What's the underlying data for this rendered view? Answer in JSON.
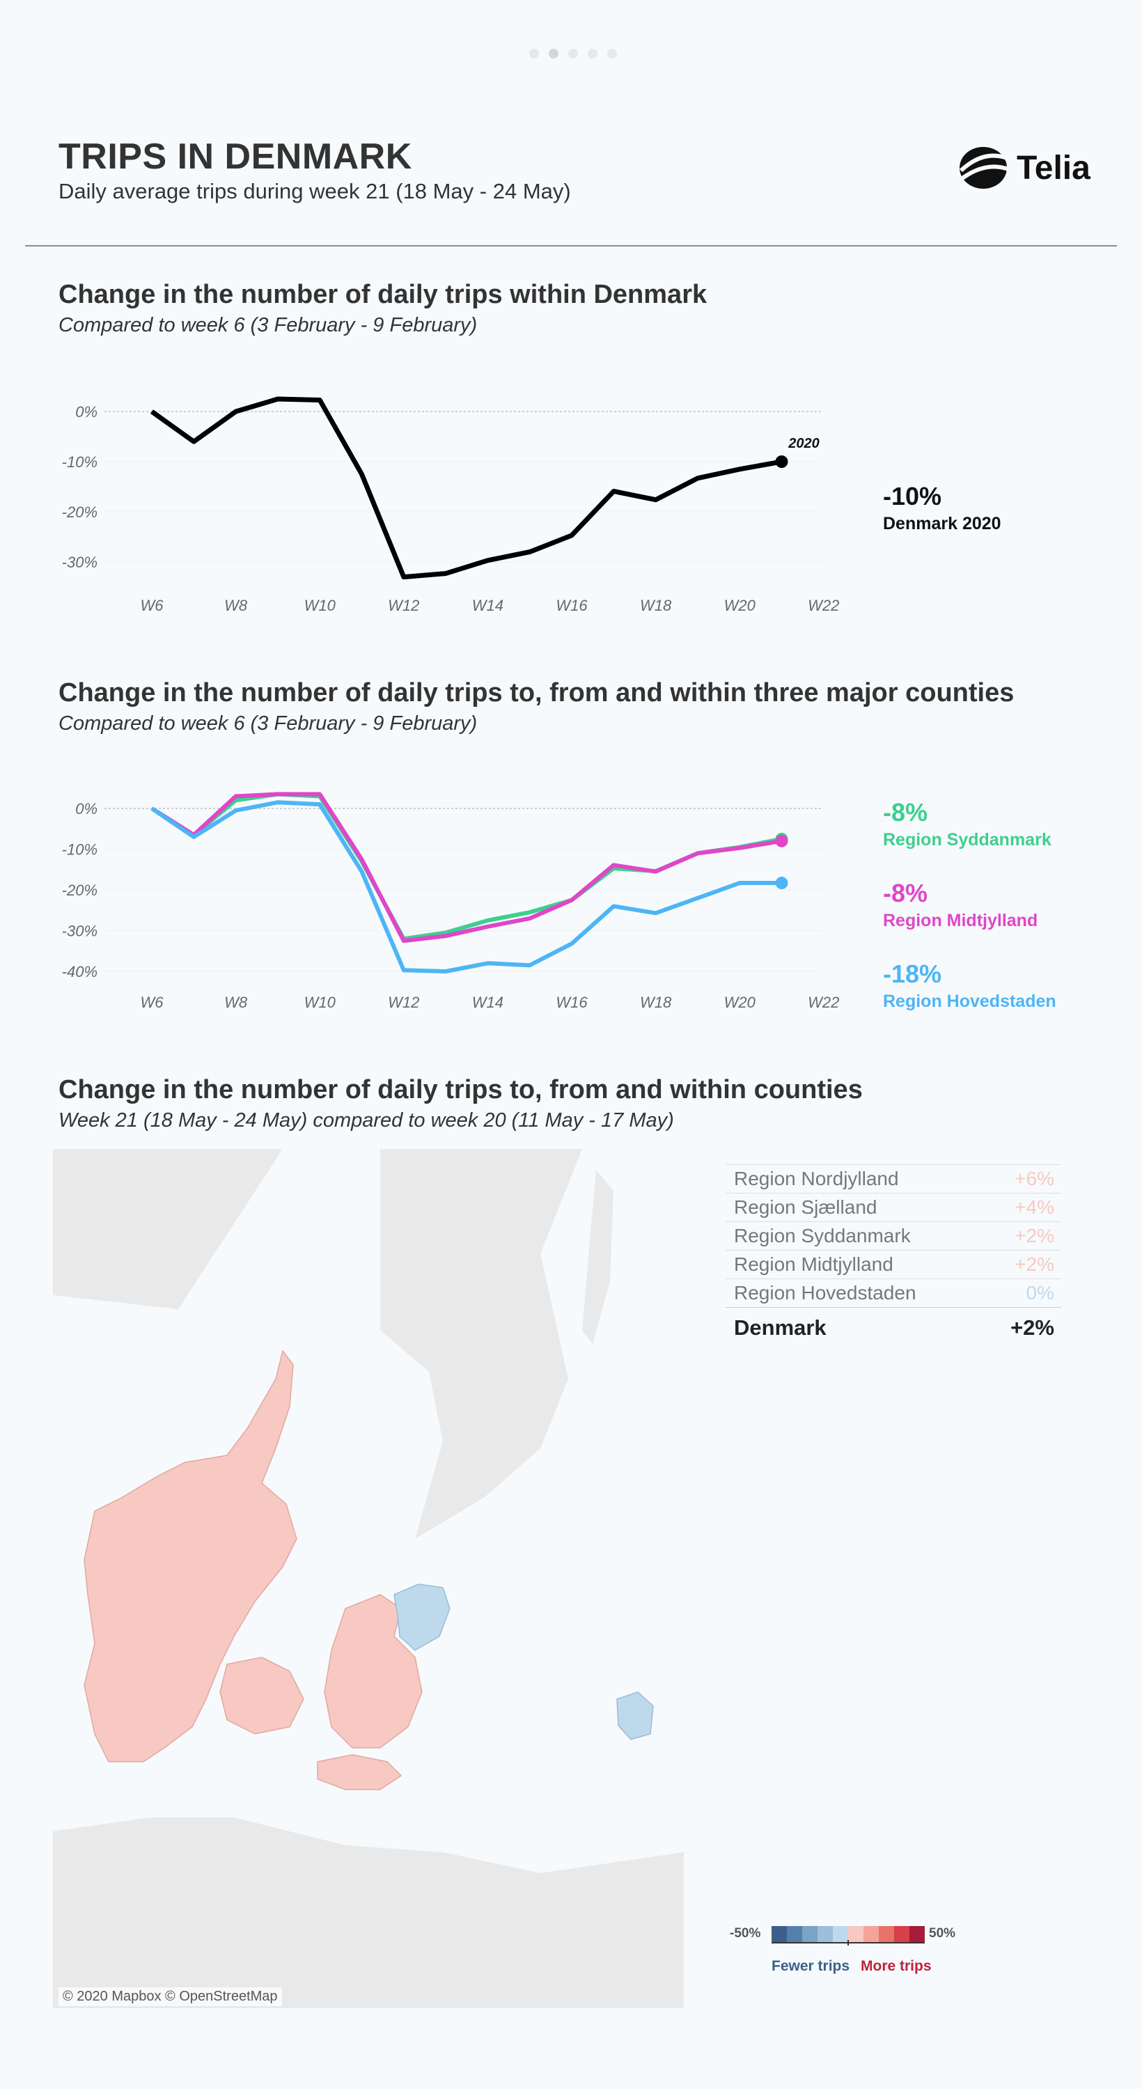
{
  "header": {
    "title": "TRIPS IN DENMARK",
    "subtitle": "Daily average trips during week 21 (18 May - 24 May)",
    "brand": "Telia",
    "page_dots": 5,
    "active_dot": 1
  },
  "colors": {
    "denmark": "#000000",
    "syddanmark": "#3ecf8e",
    "midtjylland": "#e046c8",
    "hovedstaden": "#4db5f5",
    "increase_fill": "#f7c9c2",
    "decrease_fill": "#bfd9ec"
  },
  "section1": {
    "title": "Change in the number of daily trips within Denmark",
    "subtitle": "Compared to week 6 (3 February - 9 February)",
    "callout_value": "-10%",
    "callout_label": "Denmark 2020",
    "end_label": "2020"
  },
  "section2": {
    "title": "Change in the number of daily trips to, from and within three major counties",
    "subtitle": "Compared to week 6 (3 February - 9 February)",
    "callouts": [
      {
        "value": "-8%",
        "label": "Region Syddanmark"
      },
      {
        "value": "-8%",
        "label": "Region Midtjylland"
      },
      {
        "value": "-18%",
        "label": "Region Hovedstaden"
      }
    ]
  },
  "section3": {
    "title": "Change in the number of daily trips to, from and within counties",
    "subtitle": "Week 21 (18 May - 24 May) compared to week 20 (11 May - 17 May)",
    "map_attribution": "© 2020 Mapbox © OpenStreetMap",
    "rows": [
      {
        "name": "Region Nordjylland",
        "value": "+6%"
      },
      {
        "name": "Region Sjælland",
        "value": "+4%"
      },
      {
        "name": "Region Syddanmark",
        "value": "+2%"
      },
      {
        "name": "Region Midtjylland",
        "value": "+2%"
      },
      {
        "name": "Region Hovedstaden",
        "value": "0%"
      }
    ],
    "total": {
      "name": "Denmark",
      "value": "+2%"
    },
    "legend": {
      "min": "-50%",
      "max": "50%",
      "fewer": "Fewer trips",
      "more": "More trips"
    }
  },
  "chart_data": [
    {
      "type": "line",
      "title": "Change in the number of daily trips within Denmark",
      "subtitle": "Compared to week 6 (3 February - 9 February)",
      "x": [
        6,
        7,
        8,
        9,
        10,
        11,
        12,
        13,
        14,
        15,
        16,
        17,
        18,
        19,
        20,
        21
      ],
      "xticks": [
        "W6",
        "W8",
        "W10",
        "W12",
        "W14",
        "W16",
        "W18",
        "W20",
        "W22"
      ],
      "yticks": [
        "0%",
        "-10%",
        "-20%",
        "-30%"
      ],
      "ylim": [
        -33,
        3
      ],
      "series": [
        {
          "name": "2020",
          "values": [
            0,
            -6,
            0,
            2.5,
            2.3,
            -12.5,
            -33,
            -32.3,
            -29.7,
            -28,
            -24.7,
            -15.9,
            -17.6,
            -13.3,
            -11.5,
            -10
          ]
        }
      ]
    },
    {
      "type": "line",
      "title": "Change in the number of daily trips to, from and within three major counties",
      "subtitle": "Compared to week 6 (3 February - 9 February)",
      "x": [
        6,
        7,
        8,
        9,
        10,
        11,
        12,
        13,
        14,
        15,
        16,
        17,
        18,
        19,
        20,
        21
      ],
      "xticks": [
        "W6",
        "W8",
        "W10",
        "W12",
        "W14",
        "W16",
        "W18",
        "W20",
        "W22"
      ],
      "yticks": [
        "0%",
        "-10%",
        "-20%",
        "-30%",
        "-40%"
      ],
      "ylim": [
        -42,
        3
      ],
      "series": [
        {
          "name": "Region Syddanmark",
          "values": [
            0,
            -6.5,
            2,
            3.5,
            3,
            -13,
            -32,
            -30.5,
            -27.5,
            -25.5,
            -22.5,
            -14.7,
            -15.4,
            -11,
            -9.5,
            -7.5
          ]
        },
        {
          "name": "Region Midtjylland",
          "values": [
            0,
            -6.5,
            3,
            3.5,
            3.5,
            -12.5,
            -32.5,
            -31.3,
            -29,
            -27,
            -22.5,
            -13.9,
            -15.5,
            -11,
            -9.7,
            -8
          ]
        },
        {
          "name": "Region Hovedstaden",
          "values": [
            0,
            -7,
            -0.5,
            1.5,
            1,
            -15.5,
            -39.7,
            -40,
            -38,
            -38.5,
            -33.2,
            -24,
            -25.7,
            -22,
            -18.3,
            -18.3
          ]
        }
      ]
    }
  ]
}
